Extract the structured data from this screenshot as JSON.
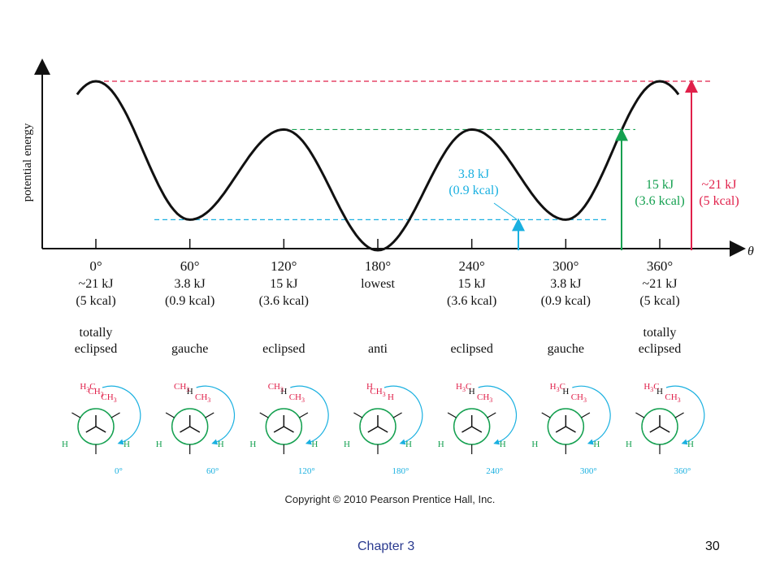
{
  "chart_data": {
    "type": "line",
    "ylabel": "potential energy",
    "xlabel": "θ",
    "x": [
      0,
      60,
      120,
      180,
      240,
      300,
      360
    ],
    "x_tick_labels": [
      "0°",
      "60°",
      "120°",
      "180°",
      "240°",
      "300°",
      "360°"
    ],
    "energy_kJ": [
      21,
      3.8,
      15,
      0,
      15,
      3.8,
      21
    ],
    "energy_text": [
      "~21 kJ",
      "3.8 kJ",
      "15 kJ",
      "lowest",
      "15 kJ",
      "3.8 kJ",
      "~21 kJ"
    ],
    "energy_kcal_text": [
      "(5 kcal)",
      "(0.9 kcal)",
      "(3.6 kcal)",
      "",
      "(3.6 kcal)",
      "(0.9 kcal)",
      "(5 kcal)"
    ],
    "conformation_labels": [
      [
        "totally",
        "eclipsed"
      ],
      [
        "gauche"
      ],
      [
        "eclipsed"
      ],
      [
        "anti"
      ],
      [
        "eclipsed"
      ],
      [
        "gauche"
      ],
      [
        "totally",
        "eclipsed"
      ]
    ],
    "annotations": [
      {
        "text": [
          "3.8 kJ",
          "(0.9 kcal)"
        ],
        "color": "#1ab0e0"
      },
      {
        "text": [
          "15 kJ",
          "(3.6 kcal)"
        ],
        "color": "#14a050"
      },
      {
        "text": [
          "~21 kJ",
          "(5 kcal)"
        ],
        "color": "#e0204a"
      }
    ],
    "newman_projections": [
      {
        "angle": "0°",
        "front": [
          "H",
          "H",
          "CH3"
        ],
        "back": [
          "H3C",
          "CH3"
        ]
      },
      {
        "angle": "60°",
        "front": [
          "H",
          "H",
          "H"
        ],
        "back": [
          "CH3",
          "CH3"
        ]
      },
      {
        "angle": "120°",
        "front": [
          "H",
          "H",
          "H"
        ],
        "back": [
          "CH3",
          "CH3"
        ]
      },
      {
        "angle": "180°",
        "front": [
          "H",
          "H",
          "CH3"
        ],
        "back": [
          "H",
          "H",
          "CH3"
        ]
      },
      {
        "angle": "240°",
        "front": [
          "H",
          "H",
          "H"
        ],
        "back": [
          "H3C",
          "CH3"
        ]
      },
      {
        "angle": "300°",
        "front": [
          "H",
          "H",
          "H"
        ],
        "back": [
          "H3C",
          "CH3"
        ]
      },
      {
        "angle": "360°",
        "front": [
          "H",
          "H",
          "H"
        ],
        "back": [
          "H3C",
          "CH3"
        ]
      }
    ],
    "grid": false,
    "legend": "none"
  },
  "colors": {
    "curve": "#111111",
    "red": "#e0204a",
    "green": "#14a050",
    "blue": "#1ab0e0",
    "newman_ring": "#14a050"
  },
  "copyright": "Copyright © 2010 Pearson Prentice Hall, Inc.",
  "footer": {
    "chapter": "Chapter 3",
    "page": "30"
  }
}
